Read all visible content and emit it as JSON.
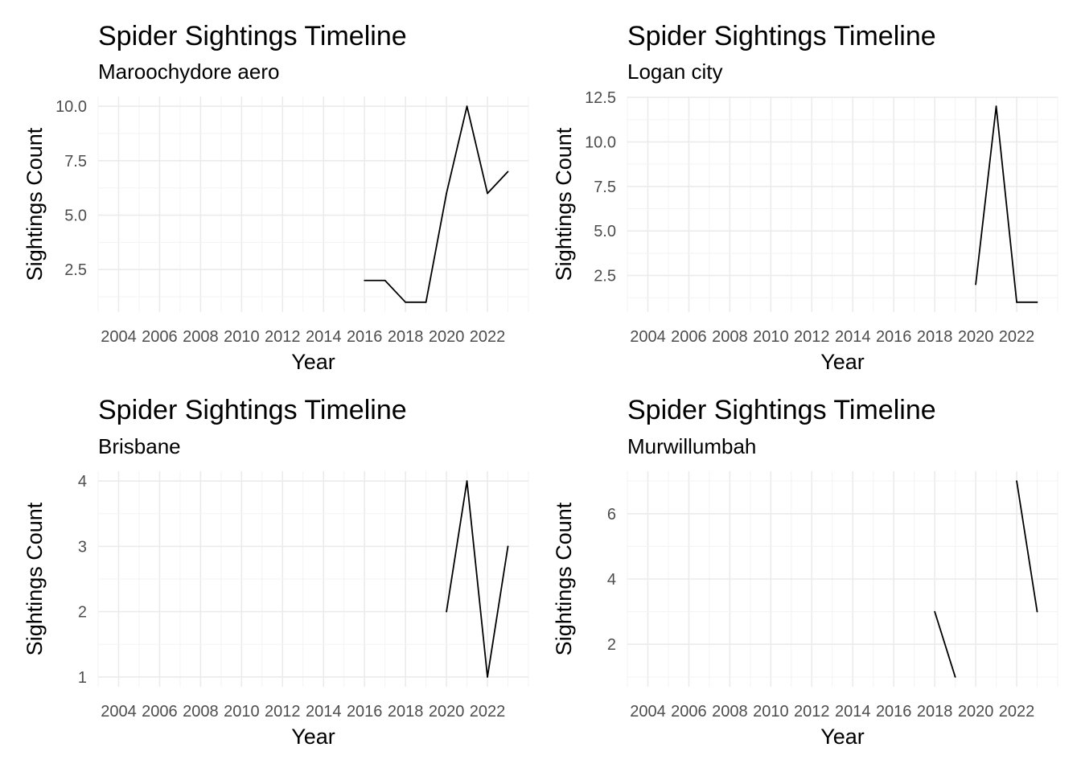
{
  "chart_data": [
    {
      "type": "line",
      "title": "Spider Sightings Timeline",
      "subtitle": "Maroochydore aero",
      "xlabel": "Year",
      "ylabel": "Sightings Count",
      "x_ticks": [
        2004,
        2006,
        2008,
        2010,
        2012,
        2014,
        2016,
        2018,
        2020,
        2022
      ],
      "y_ticks": [
        2.5,
        5.0,
        7.5,
        10.0
      ],
      "y_tick_labels": [
        "2.5",
        "5.0",
        "7.5",
        "10.0"
      ],
      "xlim": [
        2003,
        2024
      ],
      "ylim": [
        0.55,
        10.45
      ],
      "grid": true,
      "series": [
        {
          "x": [
            2016,
            2017,
            2018,
            2019,
            2020,
            2021,
            2022,
            2023
          ],
          "values": [
            2,
            2,
            1,
            1,
            6,
            10,
            6,
            7
          ]
        }
      ]
    },
    {
      "type": "line",
      "title": "Spider Sightings Timeline",
      "subtitle": "Logan city",
      "xlabel": "Year",
      "ylabel": "Sightings Count",
      "x_ticks": [
        2004,
        2006,
        2008,
        2010,
        2012,
        2014,
        2016,
        2018,
        2020,
        2022
      ],
      "y_ticks": [
        2.5,
        5.0,
        7.5,
        10.0,
        12.5
      ],
      "y_tick_labels": [
        "2.5",
        "5.0",
        "7.5",
        "10.0",
        "12.5"
      ],
      "xlim": [
        2003,
        2024
      ],
      "ylim": [
        0.45,
        12.55
      ],
      "grid": true,
      "series": [
        {
          "x": [
            2020,
            2021,
            2022,
            2023
          ],
          "values": [
            2,
            12,
            1,
            1
          ]
        }
      ]
    },
    {
      "type": "line",
      "title": "Spider Sightings Timeline",
      "subtitle": "Brisbane",
      "xlabel": "Year",
      "ylabel": "Sightings Count",
      "x_ticks": [
        2004,
        2006,
        2008,
        2010,
        2012,
        2014,
        2016,
        2018,
        2020,
        2022
      ],
      "y_ticks": [
        1,
        2,
        3,
        4
      ],
      "y_tick_labels": [
        "1",
        "2",
        "3",
        "4"
      ],
      "xlim": [
        2003,
        2024
      ],
      "ylim": [
        0.85,
        4.15
      ],
      "grid": true,
      "series": [
        {
          "x": [
            2020,
            2021,
            2022,
            2023
          ],
          "values": [
            2,
            4,
            1,
            3
          ]
        }
      ]
    },
    {
      "type": "line",
      "title": "Spider Sightings Timeline",
      "subtitle": "Murwillumbah",
      "xlabel": "Year",
      "ylabel": "Sightings Count",
      "x_ticks": [
        2004,
        2006,
        2008,
        2010,
        2012,
        2014,
        2016,
        2018,
        2020,
        2022
      ],
      "y_ticks": [
        2,
        4,
        6
      ],
      "y_tick_labels": [
        "2",
        "4",
        "6"
      ],
      "xlim": [
        2003,
        2024
      ],
      "ylim": [
        0.7,
        7.3
      ],
      "grid": true,
      "series": [
        {
          "x": [
            2018,
            2019
          ],
          "values": [
            3,
            1
          ]
        },
        {
          "x": [
            2022,
            2023
          ],
          "values": [
            7,
            3
          ]
        }
      ]
    }
  ]
}
